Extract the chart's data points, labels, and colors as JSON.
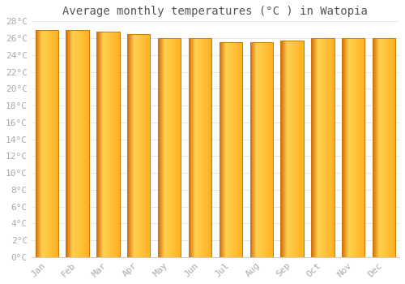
{
  "title": "Average monthly temperatures (°C ) in Watopia",
  "months": [
    "Jan",
    "Feb",
    "Mar",
    "Apr",
    "May",
    "Jun",
    "Jul",
    "Aug",
    "Sep",
    "Oct",
    "Nov",
    "Dec"
  ],
  "values": [
    27.0,
    27.0,
    26.8,
    26.5,
    26.0,
    26.0,
    25.5,
    25.5,
    25.7,
    26.0,
    26.0,
    26.0
  ],
  "ylim": [
    0,
    28
  ],
  "yticks": [
    0,
    2,
    4,
    6,
    8,
    10,
    12,
    14,
    16,
    18,
    20,
    22,
    24,
    26,
    28
  ],
  "background_color": "#FFFFFF",
  "grid_color": "#DDDDDD",
  "title_fontsize": 10,
  "tick_fontsize": 8,
  "tick_color": "#AAAAAA",
  "title_color": "#555555",
  "bar_color_left": "#E07010",
  "bar_color_mid": "#FFD040",
  "bar_color_right": "#FFB830",
  "bar_edge_color": "#CC7700",
  "bar_width": 0.75
}
